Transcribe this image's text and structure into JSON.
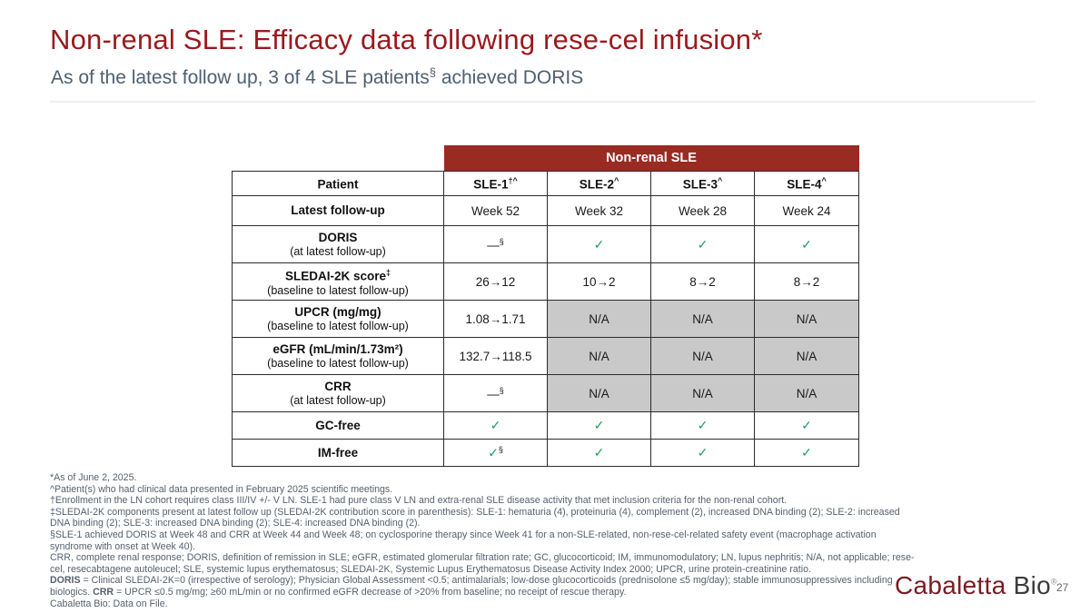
{
  "slide": {
    "title": "Non-renal SLE: Efficacy data following rese-cel infusion*",
    "subtitle_pre": "As of the latest follow up, 3 of 4 SLE patients",
    "subtitle_sup": "§",
    "subtitle_post": " achieved DORIS",
    "page_number": "27"
  },
  "logo": {
    "part1": "Cabaletta",
    "part2": " Bio",
    "registered": "®"
  },
  "colors": {
    "title_red": "#9A1A1E",
    "table_header_red": "#9A2B23",
    "subtitle_slate": "#4E6072",
    "na_gray": "#C9C9C9",
    "check_green": "#1FA05F"
  },
  "table": {
    "group_header": "Non-renal SLE",
    "columns": [
      {
        "label": "Patient",
        "sup": ""
      },
      {
        "label": "SLE-1",
        "sup": "†^"
      },
      {
        "label": "SLE-2",
        "sup": "^"
      },
      {
        "label": "SLE-3",
        "sup": "^"
      },
      {
        "label": "SLE-4",
        "sup": "^"
      }
    ],
    "rows": [
      {
        "label": "Latest follow-up",
        "label_sup": "",
        "sublabel": "",
        "height_class": "r-follow",
        "cells": [
          {
            "type": "text",
            "v": "Week 52"
          },
          {
            "type": "text",
            "v": "Week 32"
          },
          {
            "type": "text",
            "v": "Week 28"
          },
          {
            "type": "text",
            "v": "Week 24"
          }
        ]
      },
      {
        "label": "DORIS",
        "label_sup": "",
        "sublabel": "(at latest follow-up)",
        "height_class": "r-two",
        "cells": [
          {
            "type": "dash",
            "v": "—",
            "sup": "§"
          },
          {
            "type": "check",
            "v": "✓",
            "sup": ""
          },
          {
            "type": "check",
            "v": "✓",
            "sup": ""
          },
          {
            "type": "check",
            "v": "✓",
            "sup": ""
          }
        ]
      },
      {
        "label": "SLEDAI-2K score",
        "label_sup": "‡",
        "sublabel": "(baseline to latest follow-up)",
        "height_class": "r-two",
        "cells": [
          {
            "type": "text",
            "v": "26→12"
          },
          {
            "type": "text",
            "v": "10→2"
          },
          {
            "type": "text",
            "v": "8→2"
          },
          {
            "type": "text",
            "v": "8→2"
          }
        ]
      },
      {
        "label": "UPCR (mg/mg)",
        "label_sup": "",
        "sublabel": "(baseline to latest follow-up)",
        "height_class": "r-two",
        "cells": [
          {
            "type": "text",
            "v": "1.08→1.71"
          },
          {
            "type": "na",
            "v": "N/A"
          },
          {
            "type": "na",
            "v": "N/A"
          },
          {
            "type": "na",
            "v": "N/A"
          }
        ]
      },
      {
        "label": "eGFR (mL/min/1.73m²)",
        "label_sup": "",
        "sublabel": "(baseline to latest follow-up)",
        "height_class": "r-two",
        "cells": [
          {
            "type": "text",
            "v": "132.7→118.5"
          },
          {
            "type": "na",
            "v": "N/A"
          },
          {
            "type": "na",
            "v": "N/A"
          },
          {
            "type": "na",
            "v": "N/A"
          }
        ]
      },
      {
        "label": "CRR",
        "label_sup": "",
        "sublabel": "(at latest follow-up)",
        "height_class": "r-two",
        "cells": [
          {
            "type": "dash",
            "v": "—",
            "sup": "§"
          },
          {
            "type": "na",
            "v": "N/A"
          },
          {
            "type": "na",
            "v": "N/A"
          },
          {
            "type": "na",
            "v": "N/A"
          }
        ]
      },
      {
        "label": "GC-free",
        "label_sup": "",
        "sublabel": "",
        "height_class": "r-one",
        "cells": [
          {
            "type": "check",
            "v": "✓",
            "sup": ""
          },
          {
            "type": "check",
            "v": "✓",
            "sup": ""
          },
          {
            "type": "check",
            "v": "✓",
            "sup": ""
          },
          {
            "type": "check",
            "v": "✓",
            "sup": ""
          }
        ]
      },
      {
        "label": "IM-free",
        "label_sup": "",
        "sublabel": "",
        "height_class": "r-one",
        "cells": [
          {
            "type": "check",
            "v": "✓",
            "sup": "§"
          },
          {
            "type": "check",
            "v": "✓",
            "sup": ""
          },
          {
            "type": "check",
            "v": "✓",
            "sup": ""
          },
          {
            "type": "check",
            "v": "✓",
            "sup": ""
          }
        ]
      }
    ]
  },
  "footnotes": [
    [
      {
        "t": "*As of June 2, 2025."
      }
    ],
    [
      {
        "t": "^Patient(s) who had clinical data presented in February 2025 scientific meetings."
      }
    ],
    [
      {
        "t": "†Enrollment in the LN cohort requires class III/IV +/- V LN. SLE-1 had pure class V LN and extra-renal SLE disease activity that met inclusion criteria for the non-renal cohort."
      }
    ],
    [
      {
        "t": "‡SLEDAI-2K components present at latest follow up (SLEDAI-2K contribution score in parenthesis): SLE-1: hematuria (4), proteinuria (4), complement (2), increased DNA binding (2); SLE-2: increased"
      }
    ],
    [
      {
        "t": "DNA binding (2); SLE-3: increased DNA binding (2); SLE-4: increased DNA binding (2)."
      }
    ],
    [
      {
        "t": "§SLE-1 achieved DORIS at Week 48 and CRR at Week 44 and Week 48; on cyclosporine therapy since Week 41 for a non-SLE-related, non-rese-cel-related safety event (macrophage activation"
      }
    ],
    [
      {
        "t": "syndrome with onset at Week 40)."
      }
    ],
    [
      {
        "t": "CRR, complete renal response; DORIS, definition of remission in SLE; eGFR, estimated glomerular filtration rate; GC, glucocorticoid; IM, immunomodulatory; LN, lupus nephritis; N/A, not applicable; rese-"
      }
    ],
    [
      {
        "t": "cel, resecabtagene autoleucel; SLE, systemic lupus erythematosus; SLEDAI-2K, Systemic Lupus Erythematosus Disease Activity Index 2000; UPCR, urine protein-creatinine ratio."
      }
    ],
    [
      {
        "t": "DORIS",
        "b": true
      },
      {
        "t": " = Clinical SLEDAI-2K=0 (irrespective of serology); Physician Global Assessment <0.5; antimalarials; low-dose glucocorticoids (prednisolone ≤5 mg/day); stable immunosuppressives including"
      }
    ],
    [
      {
        "t": "biologics. "
      },
      {
        "t": "CRR",
        "b": true
      },
      {
        "t": " = UPCR ≤0.5 mg/mg; ≥60 mL/min or no confirmed eGFR decrease of >20% from baseline; no receipt of rescue therapy."
      }
    ],
    [
      {
        "t": "Cabaletta Bio: Data on File."
      }
    ]
  ]
}
